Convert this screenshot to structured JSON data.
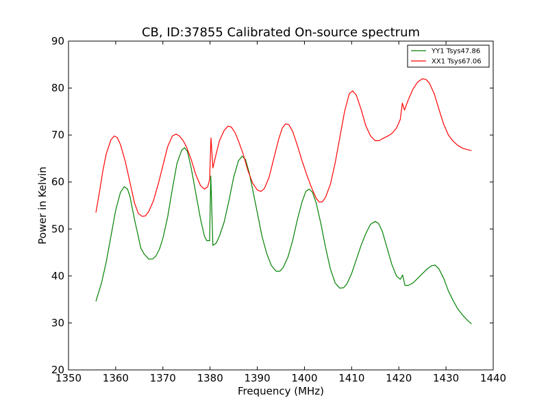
{
  "chart_data": {
    "type": "line",
    "title": "CB, ID:37855 Calibrated On-source spectrum",
    "xlabel": "Frequency (MHz)",
    "ylabel": "Power in Kelvin",
    "xlim": [
      1350,
      1440
    ],
    "ylim": [
      20,
      90
    ],
    "xticks": [
      "1350",
      "1360",
      "1370",
      "1380",
      "1390",
      "1400",
      "1410",
      "1420",
      "1430",
      "1440"
    ],
    "yticks": [
      "20",
      "30",
      "40",
      "50",
      "60",
      "70",
      "80",
      "90"
    ],
    "grid": false,
    "legend_position": "top-right",
    "series": [
      {
        "name": "YY1 Tsys47.86",
        "color": "#008000",
        "points": [
          [
            1355.8,
            34.6
          ],
          [
            1357.0,
            38.5
          ],
          [
            1358.0,
            43.0
          ],
          [
            1359.0,
            48.5
          ],
          [
            1360.0,
            54.0
          ],
          [
            1361.0,
            57.8
          ],
          [
            1361.8,
            59.0
          ],
          [
            1362.5,
            58.5
          ],
          [
            1363.0,
            57.0
          ],
          [
            1364.0,
            52.0
          ],
          [
            1364.7,
            48.8
          ],
          [
            1365.3,
            46.0
          ],
          [
            1366.0,
            44.7
          ],
          [
            1367.0,
            43.6
          ],
          [
            1367.8,
            43.6
          ],
          [
            1368.5,
            44.2
          ],
          [
            1369.3,
            45.8
          ],
          [
            1370.0,
            48.0
          ],
          [
            1371.0,
            52.5
          ],
          [
            1372.0,
            58.5
          ],
          [
            1373.0,
            64.0
          ],
          [
            1374.0,
            66.8
          ],
          [
            1374.6,
            67.3
          ],
          [
            1375.2,
            66.5
          ],
          [
            1376.0,
            63.0
          ],
          [
            1377.0,
            57.5
          ],
          [
            1378.0,
            52.0
          ],
          [
            1378.8,
            48.5
          ],
          [
            1379.3,
            47.5
          ],
          [
            1379.9,
            47.5
          ],
          [
            1380.15,
            61.3
          ],
          [
            1380.6,
            46.5
          ],
          [
            1381.3,
            47.0
          ],
          [
            1382.0,
            48.5
          ],
          [
            1383.0,
            51.5
          ],
          [
            1384.0,
            56.0
          ],
          [
            1385.0,
            61.0
          ],
          [
            1386.0,
            64.5
          ],
          [
            1386.8,
            65.5
          ],
          [
            1387.5,
            64.8
          ],
          [
            1388.3,
            62.0
          ],
          [
            1389.0,
            58.5
          ],
          [
            1390.0,
            53.5
          ],
          [
            1391.0,
            48.5
          ],
          [
            1392.0,
            44.8
          ],
          [
            1393.0,
            42.2
          ],
          [
            1394.0,
            41.0
          ],
          [
            1394.8,
            41.0
          ],
          [
            1395.5,
            41.8
          ],
          [
            1396.5,
            44.0
          ],
          [
            1397.5,
            47.5
          ],
          [
            1398.5,
            52.0
          ],
          [
            1399.5,
            55.8
          ],
          [
            1400.3,
            58.0
          ],
          [
            1401.0,
            58.5
          ],
          [
            1401.7,
            57.8
          ],
          [
            1402.5,
            55.5
          ],
          [
            1403.5,
            51.0
          ],
          [
            1404.5,
            46.0
          ],
          [
            1405.5,
            41.5
          ],
          [
            1406.5,
            38.5
          ],
          [
            1407.5,
            37.4
          ],
          [
            1408.3,
            37.5
          ],
          [
            1409.0,
            38.3
          ],
          [
            1410.0,
            40.5
          ],
          [
            1411.0,
            43.5
          ],
          [
            1412.0,
            46.5
          ],
          [
            1413.0,
            49.0
          ],
          [
            1414.0,
            51.0
          ],
          [
            1415.0,
            51.6
          ],
          [
            1415.7,
            51.2
          ],
          [
            1416.5,
            49.5
          ],
          [
            1417.5,
            46.0
          ],
          [
            1418.5,
            42.5
          ],
          [
            1419.5,
            40.0
          ],
          [
            1420.3,
            39.3
          ],
          [
            1420.8,
            40.2
          ],
          [
            1421.3,
            38.0
          ],
          [
            1422.0,
            38.0
          ],
          [
            1423.0,
            38.5
          ],
          [
            1424.0,
            39.5
          ],
          [
            1425.0,
            40.5
          ],
          [
            1426.0,
            41.5
          ],
          [
            1427.0,
            42.2
          ],
          [
            1427.7,
            42.3
          ],
          [
            1428.5,
            41.5
          ],
          [
            1429.5,
            39.5
          ],
          [
            1430.5,
            36.8
          ],
          [
            1431.5,
            34.8
          ],
          [
            1432.5,
            33.0
          ],
          [
            1433.5,
            31.7
          ],
          [
            1434.5,
            30.6
          ],
          [
            1435.4,
            29.8
          ]
        ]
      },
      {
        "name": "XX1 Tsys67.06",
        "color": "#ff0000",
        "points": [
          [
            1355.8,
            53.5
          ],
          [
            1356.5,
            57.5
          ],
          [
            1357.3,
            62.5
          ],
          [
            1358.0,
            66.0
          ],
          [
            1359.0,
            69.0
          ],
          [
            1359.7,
            69.8
          ],
          [
            1360.3,
            69.5
          ],
          [
            1361.0,
            68.0
          ],
          [
            1362.0,
            64.5
          ],
          [
            1363.0,
            60.0
          ],
          [
            1364.0,
            55.5
          ],
          [
            1364.8,
            53.3
          ],
          [
            1365.6,
            52.7
          ],
          [
            1366.3,
            52.8
          ],
          [
            1367.0,
            53.7
          ],
          [
            1368.0,
            56.0
          ],
          [
            1369.0,
            59.5
          ],
          [
            1370.0,
            63.5
          ],
          [
            1371.0,
            67.5
          ],
          [
            1372.0,
            69.8
          ],
          [
            1372.8,
            70.2
          ],
          [
            1373.5,
            69.8
          ],
          [
            1374.3,
            68.8
          ],
          [
            1375.0,
            67.5
          ],
          [
            1376.0,
            64.8
          ],
          [
            1377.0,
            61.5
          ],
          [
            1378.0,
            59.2
          ],
          [
            1378.8,
            58.5
          ],
          [
            1379.5,
            59.0
          ],
          [
            1379.9,
            60.5
          ],
          [
            1380.2,
            69.4
          ],
          [
            1380.6,
            63.0
          ],
          [
            1381.3,
            66.0
          ],
          [
            1382.0,
            68.8
          ],
          [
            1383.0,
            71.0
          ],
          [
            1383.8,
            71.9
          ],
          [
            1384.5,
            71.7
          ],
          [
            1385.3,
            70.5
          ],
          [
            1386.0,
            68.8
          ],
          [
            1387.0,
            66.0
          ],
          [
            1388.0,
            62.5
          ],
          [
            1389.0,
            59.8
          ],
          [
            1390.0,
            58.3
          ],
          [
            1390.8,
            58.0
          ],
          [
            1391.5,
            58.6
          ],
          [
            1392.5,
            61.0
          ],
          [
            1393.5,
            65.0
          ],
          [
            1394.5,
            69.0
          ],
          [
            1395.3,
            71.5
          ],
          [
            1396.0,
            72.4
          ],
          [
            1396.7,
            72.2
          ],
          [
            1397.5,
            70.8
          ],
          [
            1398.5,
            67.8
          ],
          [
            1399.5,
            64.5
          ],
          [
            1400.5,
            61.5
          ],
          [
            1401.5,
            58.8
          ],
          [
            1402.5,
            56.5
          ],
          [
            1403.2,
            55.7
          ],
          [
            1403.8,
            55.8
          ],
          [
            1404.5,
            56.8
          ],
          [
            1405.5,
            59.5
          ],
          [
            1406.5,
            64.0
          ],
          [
            1407.5,
            69.5
          ],
          [
            1408.5,
            75.0
          ],
          [
            1409.5,
            78.8
          ],
          [
            1410.2,
            79.4
          ],
          [
            1411.0,
            78.5
          ],
          [
            1412.0,
            75.5
          ],
          [
            1413.0,
            72.0
          ],
          [
            1414.0,
            69.8
          ],
          [
            1415.0,
            68.8
          ],
          [
            1415.8,
            68.8
          ],
          [
            1416.5,
            69.2
          ],
          [
            1417.5,
            69.7
          ],
          [
            1418.5,
            70.3
          ],
          [
            1419.5,
            71.5
          ],
          [
            1420.3,
            73.3
          ],
          [
            1420.75,
            76.8
          ],
          [
            1421.2,
            75.3
          ],
          [
            1422.0,
            77.5
          ],
          [
            1423.0,
            79.8
          ],
          [
            1424.0,
            81.3
          ],
          [
            1425.0,
            82.0
          ],
          [
            1425.8,
            81.8
          ],
          [
            1426.5,
            81.0
          ],
          [
            1427.5,
            78.8
          ],
          [
            1428.5,
            75.5
          ],
          [
            1429.5,
            72.3
          ],
          [
            1430.5,
            70.0
          ],
          [
            1431.5,
            68.7
          ],
          [
            1432.5,
            67.8
          ],
          [
            1433.5,
            67.2
          ],
          [
            1434.5,
            66.9
          ],
          [
            1435.4,
            66.7
          ]
        ]
      }
    ]
  }
}
